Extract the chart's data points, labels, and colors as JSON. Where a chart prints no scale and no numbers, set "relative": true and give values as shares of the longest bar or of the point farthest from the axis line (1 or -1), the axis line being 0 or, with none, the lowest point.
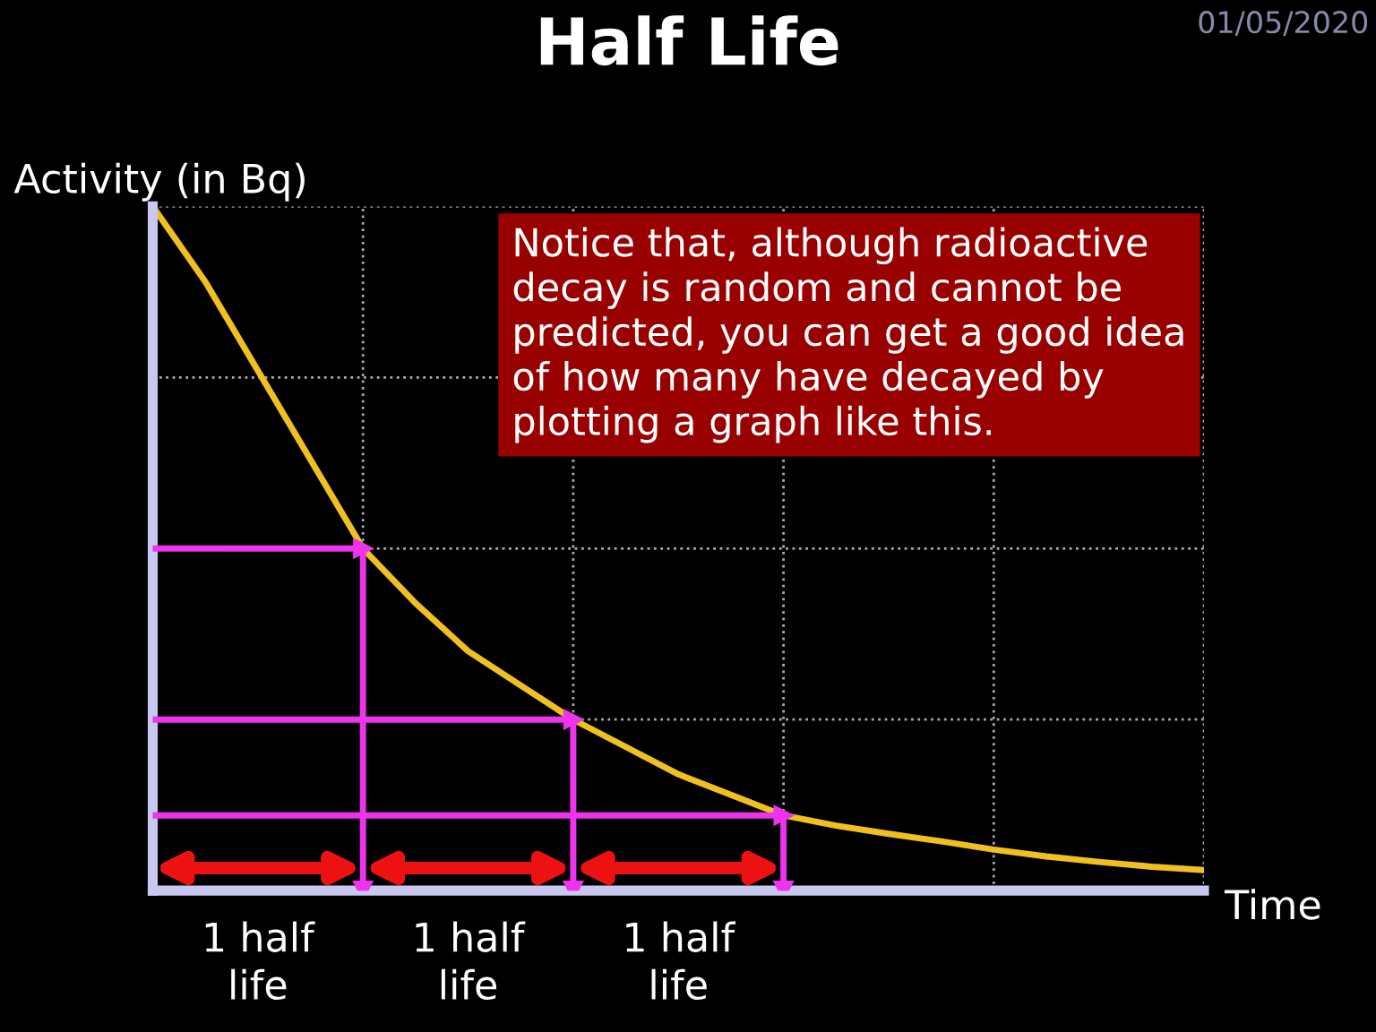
{
  "chart_data": {
    "type": "line",
    "title": "Half Life",
    "xlabel": "Time",
    "ylabel": "Activity (in Bq)",
    "relative": true,
    "tick_labels": false,
    "grid": true,
    "marker": "none",
    "line_style": "solid",
    "categories": [
      null,
      null,
      null,
      null,
      null,
      null,
      null,
      null,
      null,
      null,
      null,
      null,
      null,
      null,
      null,
      null,
      null,
      null,
      null,
      null,
      null
    ],
    "series": [
      {
        "color": "#f0c020",
        "values": [
          1.0,
          0.89,
          0.76,
          0.63,
          0.5,
          0.42,
          0.35,
          0.3,
          0.25,
          0.21,
          0.17,
          0.14,
          0.11,
          0.095,
          0.083,
          0.072,
          0.06,
          0.05,
          0.042,
          0.035,
          0.03
        ]
      }
    ],
    "ref_lines": [
      {
        "axis": "y",
        "value": 0.5,
        "color": "#ee33ee"
      },
      {
        "axis": "y",
        "value": 0.25,
        "color": "#ee33ee"
      },
      {
        "axis": "y",
        "value": 0.11,
        "color": "#ee33ee"
      }
    ],
    "annotations": [
      "Notice that, although radioactive\ndecay is random and cannot be\npredicted, you can get a good idea\nof how many have decayed by\nplotting a graph like this.",
      "01/05/2020",
      "1 half\nlife",
      "1 half\nlife",
      "1 half\nlife"
    ]
  }
}
